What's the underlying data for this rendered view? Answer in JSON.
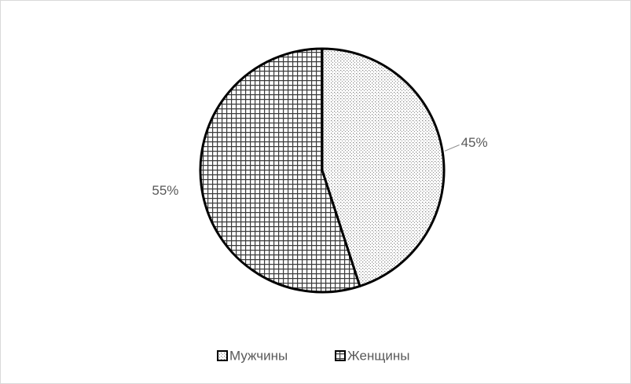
{
  "chart_data": {
    "type": "pie",
    "categories": [
      "Мужчины",
      "Женщины"
    ],
    "values": [
      45,
      55
    ],
    "value_labels": [
      "45%",
      "55%"
    ],
    "colors": [
      "#8a8a8a",
      "#3a3a3a"
    ]
  }
}
